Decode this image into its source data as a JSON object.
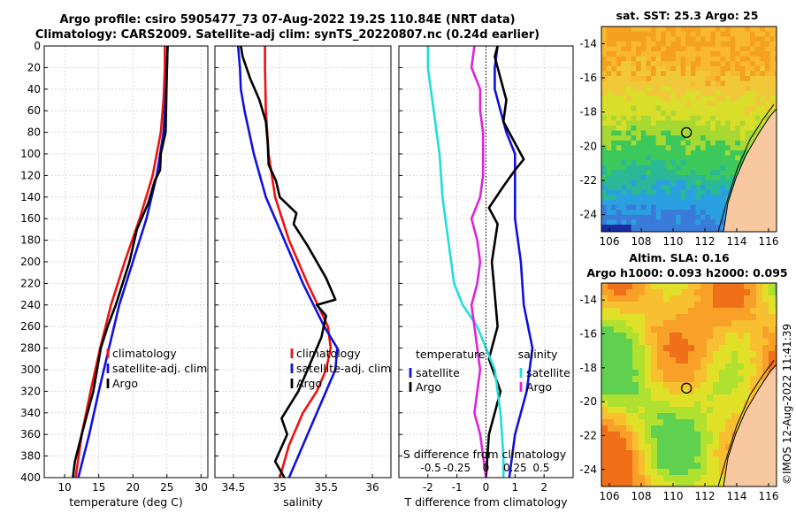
{
  "header": {
    "line1": "Argo profile: csiro 5905477_73 07-Aug-2022 19.2S 110.84E (NRT data)",
    "line2": "Climatology: CARS2009. Satellite-adj clim: synTS_20220807.nc (0.24d earlier)"
  },
  "timestamp": "©IMOS 12-Aug-2022 11:41:39",
  "colors": {
    "red": "#ee1111",
    "blue": "#1111dd",
    "black": "#000000",
    "cyan": "#22dddd",
    "magenta": "#dd22dd"
  },
  "chart_data": [
    {
      "type": "line",
      "id": "temperature",
      "xlabel": "temperature (deg C)",
      "ylabel": "",
      "xlim": [
        7,
        31
      ],
      "ylim": [
        0,
        400
      ],
      "xticks": [
        10,
        15,
        20,
        25,
        30
      ],
      "yticks": [
        0,
        20,
        40,
        60,
        80,
        100,
        120,
        140,
        160,
        180,
        200,
        220,
        240,
        260,
        280,
        300,
        320,
        340,
        360,
        380,
        400
      ],
      "legend": [
        "climatology",
        "satellite-adj. clim",
        "Argo"
      ],
      "series": [
        {
          "name": "climatology",
          "color": "red",
          "points": [
            [
              24.7,
              0
            ],
            [
              24.7,
              20
            ],
            [
              24.5,
              50
            ],
            [
              24.1,
              80
            ],
            [
              22.9,
              120
            ],
            [
              21.0,
              160
            ],
            [
              18.8,
              200
            ],
            [
              16.8,
              240
            ],
            [
              15.2,
              280
            ],
            [
              13.8,
              320
            ],
            [
              12.5,
              360
            ],
            [
              11.6,
              400
            ]
          ]
        },
        {
          "name": "satellite-adj. clim",
          "color": "blue",
          "points": [
            [
              25.1,
              0
            ],
            [
              25.0,
              20
            ],
            [
              24.8,
              50
            ],
            [
              24.5,
              80
            ],
            [
              23.5,
              120
            ],
            [
              22.0,
              160
            ],
            [
              20.0,
              200
            ],
            [
              18.0,
              240
            ],
            [
              16.5,
              280
            ],
            [
              15.0,
              320
            ],
            [
              13.6,
              360
            ],
            [
              12.0,
              400
            ]
          ]
        },
        {
          "name": "Argo",
          "color": "black",
          "points": [
            [
              25.1,
              0
            ],
            [
              25.0,
              20
            ],
            [
              24.9,
              50
            ],
            [
              24.8,
              80
            ],
            [
              24.1,
              100
            ],
            [
              24.0,
              115
            ],
            [
              23.2,
              125
            ],
            [
              22.3,
              145
            ],
            [
              20.6,
              170
            ],
            [
              19.5,
              200
            ],
            [
              17.5,
              240
            ],
            [
              16.3,
              260
            ],
            [
              15.3,
              280
            ],
            [
              14.2,
              320
            ],
            [
              12.5,
              360
            ],
            [
              11.5,
              385
            ],
            [
              11.2,
              400
            ]
          ]
        }
      ]
    },
    {
      "type": "line",
      "id": "salinity",
      "xlabel": "salinity",
      "ylabel": "",
      "xlim": [
        34.3,
        36.2
      ],
      "ylim": [
        0,
        400
      ],
      "xticks": [
        34.5,
        35,
        35.5,
        36
      ],
      "legend": [
        "climatology",
        "satellite-adj. clim",
        "Argo"
      ],
      "series": [
        {
          "name": "climatology",
          "color": "red",
          "points": [
            [
              34.84,
              0
            ],
            [
              34.84,
              20
            ],
            [
              34.85,
              60
            ],
            [
              34.88,
              100
            ],
            [
              34.95,
              140
            ],
            [
              35.1,
              180
            ],
            [
              35.3,
              220
            ],
            [
              35.52,
              260
            ],
            [
              35.55,
              280
            ],
            [
              35.5,
              300
            ],
            [
              35.4,
              320
            ],
            [
              35.25,
              340
            ],
            [
              35.1,
              370
            ],
            [
              35.0,
              400
            ]
          ]
        },
        {
          "name": "satellite-adj. clim",
          "color": "blue",
          "points": [
            [
              34.55,
              0
            ],
            [
              34.57,
              20
            ],
            [
              34.58,
              40
            ],
            [
              34.62,
              60
            ],
            [
              34.72,
              100
            ],
            [
              34.85,
              140
            ],
            [
              35.05,
              180
            ],
            [
              35.25,
              220
            ],
            [
              35.48,
              260
            ],
            [
              35.62,
              280
            ],
            [
              35.6,
              300
            ],
            [
              35.5,
              320
            ],
            [
              35.35,
              350
            ],
            [
              35.2,
              380
            ],
            [
              35.1,
              400
            ]
          ]
        },
        {
          "name": "Argo",
          "color": "black",
          "points": [
            [
              34.58,
              0
            ],
            [
              34.6,
              10
            ],
            [
              34.64,
              20
            ],
            [
              34.68,
              30
            ],
            [
              34.78,
              50
            ],
            [
              34.85,
              70
            ],
            [
              34.87,
              90
            ],
            [
              34.88,
              110
            ],
            [
              34.96,
              125
            ],
            [
              35.0,
              140
            ],
            [
              35.18,
              155
            ],
            [
              35.15,
              165
            ],
            [
              35.3,
              185
            ],
            [
              35.4,
              200
            ],
            [
              35.5,
              215
            ],
            [
              35.6,
              235
            ],
            [
              35.4,
              240
            ],
            [
              35.5,
              250
            ],
            [
              35.45,
              270
            ],
            [
              35.35,
              290
            ],
            [
              35.2,
              320
            ],
            [
              35.02,
              345
            ],
            [
              35.08,
              360
            ],
            [
              34.95,
              385
            ],
            [
              35.05,
              400
            ]
          ]
        }
      ]
    },
    {
      "type": "line",
      "id": "difference",
      "xlabel": "T difference from climatology",
      "xlabel_top": "S difference from climatology",
      "xlim": [
        -3,
        3
      ],
      "ylim": [
        0,
        400
      ],
      "xticks": [
        -2,
        -1,
        0,
        1,
        2
      ],
      "xticklabels_top": [
        "-0.5",
        "-0.25",
        "0",
        "0.25",
        "0.5"
      ],
      "legend_left_title": "temperature",
      "legend_right_title": "salinity",
      "legend_left": [
        "satellite",
        "Argo"
      ],
      "legend_right": [
        "satellite",
        "Argo"
      ],
      "series": [
        {
          "name": "temperature satellite",
          "color": "blue",
          "points": [
            [
              0.4,
              0
            ],
            [
              0.3,
              20
            ],
            [
              0.3,
              40
            ],
            [
              0.5,
              60
            ],
            [
              0.7,
              80
            ],
            [
              1.0,
              100
            ],
            [
              1.0,
              160
            ],
            [
              1.2,
              200
            ],
            [
              1.3,
              240
            ],
            [
              1.6,
              280
            ],
            [
              1.4,
              320
            ],
            [
              1.0,
              360
            ],
            [
              0.8,
              400
            ]
          ]
        },
        {
          "name": "temperature Argo",
          "color": "black",
          "points": [
            [
              0.4,
              0
            ],
            [
              0.3,
              10
            ],
            [
              0.5,
              30
            ],
            [
              0.7,
              50
            ],
            [
              0.6,
              70
            ],
            [
              0.9,
              85
            ],
            [
              1.3,
              105
            ],
            [
              1.0,
              115
            ],
            [
              0.6,
              130
            ],
            [
              0.1,
              150
            ],
            [
              0.4,
              165
            ],
            [
              0.2,
              200
            ],
            [
              0.3,
              230
            ],
            [
              0.4,
              260
            ],
            [
              0.1,
              290
            ],
            [
              0.5,
              320
            ],
            [
              0.1,
              360
            ],
            [
              0.0,
              400
            ]
          ]
        },
        {
          "name": "salinity satellite",
          "color": "cyan",
          "points": [
            [
              -2.0,
              0
            ],
            [
              -2.0,
              20
            ],
            [
              -1.8,
              60
            ],
            [
              -1.6,
              100
            ],
            [
              -1.5,
              140
            ],
            [
              -1.3,
              180
            ],
            [
              -1.1,
              220
            ],
            [
              -0.8,
              240
            ],
            [
              -0.3,
              260
            ],
            [
              0.0,
              280
            ],
            [
              0.3,
              300
            ],
            [
              0.5,
              340
            ],
            [
              0.6,
              380
            ],
            [
              0.6,
              400
            ]
          ]
        },
        {
          "name": "salinity Argo",
          "color": "magenta",
          "points": [
            [
              -0.4,
              0
            ],
            [
              -0.5,
              20
            ],
            [
              -0.2,
              40
            ],
            [
              -0.2,
              60
            ],
            [
              -0.1,
              80
            ],
            [
              -0.1,
              100
            ],
            [
              -0.1,
              120
            ],
            [
              -0.2,
              140
            ],
            [
              -0.5,
              160
            ],
            [
              -0.3,
              180
            ],
            [
              -0.2,
              200
            ],
            [
              -0.3,
              220
            ],
            [
              -0.5,
              240
            ],
            [
              -0.4,
              260
            ],
            [
              -0.3,
              280
            ],
            [
              -0.2,
              300
            ],
            [
              -0.3,
              320
            ],
            [
              -0.4,
              340
            ],
            [
              -0.2,
              360
            ],
            [
              -0.1,
              380
            ],
            [
              0.0,
              400
            ]
          ]
        }
      ]
    },
    {
      "type": "heatmap",
      "id": "sst-map",
      "title": "sat. SST: 25.3 Argo: 25",
      "xticks": [
        106,
        108,
        110,
        112,
        114,
        116
      ],
      "yticks": [
        -14,
        -16,
        -18,
        -20,
        -22,
        -24
      ],
      "xlim": [
        105.5,
        116.5
      ],
      "ylim": [
        -25,
        -13
      ],
      "marker": {
        "lon": 110.84,
        "lat": -19.2
      }
    },
    {
      "type": "heatmap",
      "id": "sla-map",
      "title": "Altim. SLA: 0.16",
      "subtitle": "Argo h1000: 0.093 h2000: 0.095",
      "xticks": [
        106,
        108,
        110,
        112,
        114,
        116
      ],
      "yticks": [
        -14,
        -16,
        -18,
        -20,
        -22,
        -24
      ],
      "xlim": [
        105.5,
        116.5
      ],
      "ylim": [
        -25,
        -13
      ],
      "marker": {
        "lon": 110.84,
        "lat": -19.2
      }
    }
  ]
}
